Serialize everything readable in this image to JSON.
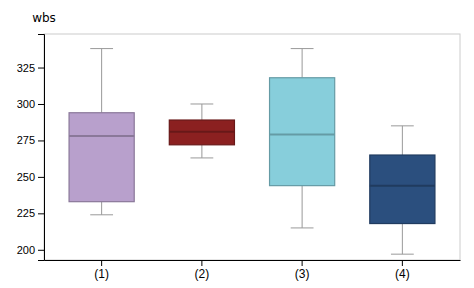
{
  "chart_data": {
    "type": "box",
    "ylabel": "wbs",
    "categories": [
      "(1)",
      "(2)",
      "(3)",
      "(4)"
    ],
    "whisker_low": [
      224,
      263,
      215,
      197
    ],
    "q1": [
      233,
      272,
      244,
      218
    ],
    "median": [
      278,
      281,
      279,
      244
    ],
    "q3": [
      294,
      289,
      318,
      265
    ],
    "whisker_high": [
      338,
      300,
      338,
      285
    ],
    "colors": [
      "#b8a0cc",
      "#8b2020",
      "#87cedb",
      "#2b4f7e"
    ],
    "ylim": [
      193,
      348
    ],
    "yticks": [
      200,
      225,
      250,
      275,
      300,
      325
    ],
    "grid": false
  }
}
